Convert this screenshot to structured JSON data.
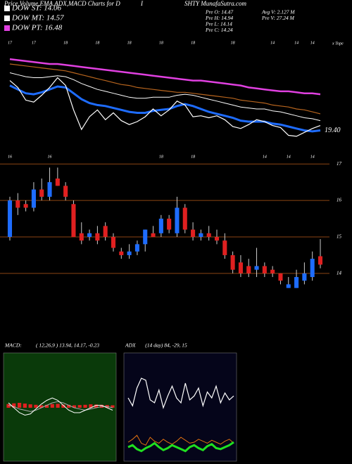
{
  "header": {
    "title": "Price,Volume,EMA,ADX,MACD Charts for D",
    "title_mid": "I",
    "title_right": "SHTY MunafaSutra.com",
    "legend": [
      {
        "name": "DOW ST: 14.06",
        "color": "#ffffff"
      },
      {
        "name": "DOW MT: 14.57",
        "color": "#ffffff"
      },
      {
        "name": "DOW PT: 16.48",
        "color": "#e040e0"
      }
    ],
    "stats_left": [
      "Pre  O: 14.47",
      "Pre  H: 14.94",
      "Pre  L: 14.14",
      "Pre  C: 14.24"
    ],
    "stats_right": [
      "Avg V: 2.127  M",
      "Pre  V: 27.24  M"
    ]
  },
  "chart_data": [
    {
      "type": "line",
      "corner_label": "x Tope",
      "categories": [
        "17",
        null,
        null,
        "17",
        null,
        null,
        null,
        "18",
        null,
        null,
        null,
        "18",
        null,
        null,
        null,
        "18",
        null,
        null,
        null,
        "18",
        null,
        null,
        null,
        "18",
        null,
        null,
        null,
        null,
        "18",
        null,
        null,
        null,
        null,
        "14",
        null,
        null,
        "14",
        null,
        "14",
        null
      ],
      "ylim": [
        18,
        28
      ],
      "annotations": [
        {
          "value": 19.4,
          "label": "19.40"
        }
      ],
      "series": [
        {
          "color": "#e040e0",
          "width": 2.5,
          "values": [
            26.7,
            26.6,
            26.5,
            26.4,
            26.3,
            26.2,
            26.2,
            26.1,
            26.0,
            25.9,
            25.8,
            25.7,
            25.6,
            25.5,
            25.4,
            25.3,
            25.2,
            25.1,
            25.0,
            24.9,
            24.8,
            24.7,
            24.6,
            24.5,
            24.5,
            24.4,
            24.3,
            24.2,
            24.1,
            24.0,
            23.8,
            23.7,
            23.6,
            23.5,
            23.4,
            23.4,
            23.3,
            23.2,
            23.2,
            23.1
          ]
        },
        {
          "color": "#b8651e",
          "width": 1.2,
          "values": [
            26.2,
            26.1,
            26.0,
            25.9,
            25.8,
            25.7,
            25.6,
            25.5,
            25.3,
            25.1,
            24.9,
            24.7,
            24.5,
            24.3,
            24.1,
            24.0,
            23.8,
            23.7,
            23.6,
            23.5,
            23.4,
            23.3,
            23.3,
            23.2,
            23.1,
            23.0,
            22.9,
            22.8,
            22.7,
            22.5,
            22.4,
            22.3,
            22.2,
            22.0,
            21.9,
            21.8,
            21.6,
            21.5,
            21.3,
            21.1
          ]
        },
        {
          "color": "#ffffff",
          "width": 1,
          "values": [
            25.3,
            25.1,
            24.9,
            24.8,
            24.8,
            24.9,
            25.0,
            24.9,
            24.6,
            24.2,
            23.9,
            23.6,
            23.4,
            23.2,
            23.0,
            22.8,
            22.7,
            22.7,
            22.8,
            22.8,
            22.8,
            23.0,
            23.1,
            23.0,
            22.8,
            22.6,
            22.4,
            22.2,
            22.0,
            21.8,
            21.7,
            21.6,
            21.6,
            21.4,
            21.3,
            21.1,
            20.9,
            20.7,
            20.6,
            20.4
          ]
        },
        {
          "color": "#1e6cff",
          "width": 3,
          "values": [
            24.0,
            23.6,
            23.2,
            23.1,
            23.3,
            23.6,
            23.9,
            23.8,
            23.2,
            22.6,
            22.2,
            22.0,
            21.9,
            21.7,
            21.5,
            21.3,
            21.2,
            21.2,
            21.4,
            21.5,
            21.6,
            21.9,
            22.1,
            21.9,
            21.6,
            21.3,
            21.1,
            20.9,
            20.7,
            20.4,
            20.3,
            20.3,
            20.3,
            20.1,
            20.0,
            19.8,
            19.6,
            19.4,
            19.3,
            19.4
          ]
        },
        {
          "color": "#ffffff",
          "width": 1.2,
          "values": [
            24.5,
            23.8,
            22.5,
            22.3,
            23.0,
            23.8,
            24.8,
            24.0,
            21.5,
            19.5,
            20.8,
            21.5,
            20.5,
            21.2,
            20.4,
            20.0,
            20.3,
            20.8,
            21.6,
            20.9,
            21.5,
            22.4,
            22.0,
            20.8,
            20.9,
            20.7,
            20.9,
            20.5,
            19.8,
            19.6,
            20.0,
            20.5,
            20.3,
            19.9,
            19.7,
            18.9,
            18.8,
            19.2,
            19.6,
            19.9
          ]
        }
      ]
    },
    {
      "type": "candlestick",
      "categories": [
        "16",
        null,
        null,
        null,
        null,
        "16",
        null,
        null,
        null,
        null,
        null,
        null,
        null,
        null,
        null,
        null,
        null,
        null,
        null,
        "18",
        null,
        null,
        null,
        "18",
        null,
        null,
        null,
        null,
        null,
        null,
        null,
        null,
        "14",
        null,
        null,
        "14",
        null,
        null,
        "14",
        null
      ],
      "ylim": [
        13.4,
        17.1
      ],
      "yticks": [
        14,
        15,
        16,
        17
      ],
      "grid": true,
      "grid_color": "#8b4513",
      "up_color": "#1e6cff",
      "down_color": "#e02020",
      "open": [
        15.0,
        16.0,
        15.9,
        15.8,
        16.3,
        16.1,
        16.6,
        16.4,
        15.9,
        15.1,
        15.0,
        15.1,
        15.3,
        15.0,
        14.6,
        14.5,
        14.6,
        14.8,
        15.1,
        15.1,
        15.5,
        15.1,
        15.8,
        15.2,
        15.0,
        15.1,
        15.0,
        14.9,
        14.5,
        14.3,
        14.2,
        14.1,
        14.2,
        14.1,
        14.0,
        13.6,
        13.6,
        13.8,
        13.9,
        14.47
      ],
      "high": [
        16.1,
        16.2,
        16.0,
        16.5,
        16.6,
        16.9,
        16.9,
        16.5,
        16.0,
        15.4,
        15.2,
        15.3,
        15.4,
        15.1,
        14.7,
        14.8,
        14.9,
        15.2,
        15.3,
        15.6,
        15.6,
        16.1,
        15.9,
        15.4,
        15.2,
        15.3,
        15.2,
        15.1,
        14.6,
        14.5,
        14.4,
        14.7,
        14.3,
        14.2,
        14.0,
        13.9,
        14.1,
        14.3,
        14.6,
        14.94
      ],
      "low": [
        14.9,
        15.6,
        15.7,
        15.7,
        16.0,
        16.0,
        16.4,
        16.0,
        15.0,
        14.8,
        14.9,
        14.8,
        14.9,
        14.6,
        14.4,
        14.4,
        14.5,
        14.6,
        15.0,
        15.0,
        15.1,
        15.0,
        15.1,
        14.9,
        14.9,
        14.9,
        14.8,
        14.4,
        14.0,
        13.9,
        13.9,
        13.9,
        13.9,
        13.9,
        13.7,
        13.6,
        13.6,
        13.7,
        13.8,
        14.14
      ],
      "close": [
        16.0,
        15.8,
        15.8,
        16.3,
        16.1,
        16.5,
        16.4,
        16.1,
        15.0,
        14.9,
        15.1,
        14.9,
        15.0,
        14.7,
        14.5,
        14.6,
        14.8,
        15.2,
        15.0,
        15.5,
        15.2,
        15.8,
        15.2,
        15.0,
        15.1,
        15.0,
        14.9,
        14.5,
        14.1,
        14.0,
        14.0,
        14.2,
        14.0,
        14.0,
        13.8,
        13.7,
        13.9,
        14.0,
        14.4,
        14.24
      ]
    },
    {
      "type": "line",
      "title": "MACD:",
      "subtitle": "( 12,26,9 ) 13.94, 14.17, -0.23",
      "background": "#0a3a0a",
      "ylim": [
        -2,
        2
      ],
      "series": [
        {
          "color": "#e02020",
          "mark": "bar",
          "values": [
            0.15,
            0.18,
            0.2,
            0.17,
            0.14,
            0.12,
            0.1,
            0.12,
            0.15,
            0.16,
            0.13,
            0.12,
            0.1,
            0.11,
            0.12,
            0.14,
            0.13,
            0.12,
            0.11,
            0.1
          ]
        },
        {
          "color": "#aaaaaa",
          "width": 1,
          "values": [
            0.1,
            0.05,
            -0.05,
            -0.1,
            -0.15,
            -0.1,
            0.0,
            0.1,
            0.2,
            0.25,
            0.2,
            0.1,
            0.0,
            -0.05,
            -0.1,
            -0.05,
            0.0,
            0.05,
            0.05,
            0.0
          ]
        },
        {
          "color": "#ffffff",
          "width": 1,
          "values": [
            0.2,
            0.0,
            -0.2,
            -0.3,
            -0.25,
            -0.05,
            0.15,
            0.3,
            0.4,
            0.3,
            0.1,
            -0.1,
            -0.2,
            -0.2,
            -0.1,
            0.0,
            0.1,
            0.1,
            0.0,
            -0.1
          ]
        }
      ]
    },
    {
      "type": "line",
      "title": "ADX",
      "subtitle": "(14 day) 84, -29, 15",
      "background": "#05051a",
      "ylim": [
        0,
        100
      ],
      "series": [
        {
          "color": "#ffffff",
          "width": 1.2,
          "values": [
            60,
            52,
            70,
            80,
            78,
            58,
            55,
            68,
            50,
            62,
            72,
            60,
            55,
            75,
            58,
            62,
            70,
            52,
            66,
            60,
            72,
            55,
            65,
            58,
            62
          ]
        },
        {
          "color": "#e07010",
          "width": 1,
          "values": [
            15,
            18,
            22,
            14,
            12,
            20,
            16,
            14,
            18,
            15,
            13,
            16,
            20,
            17,
            14,
            15,
            18,
            16,
            14,
            17,
            15,
            13,
            16,
            18,
            14
          ]
        },
        {
          "color": "#20e020",
          "width": 3,
          "values": [
            10,
            12,
            8,
            6,
            9,
            11,
            14,
            10,
            7,
            9,
            12,
            10,
            8,
            6,
            10,
            12,
            9,
            7,
            11,
            13,
            9,
            8,
            10,
            12,
            15
          ]
        }
      ]
    }
  ]
}
